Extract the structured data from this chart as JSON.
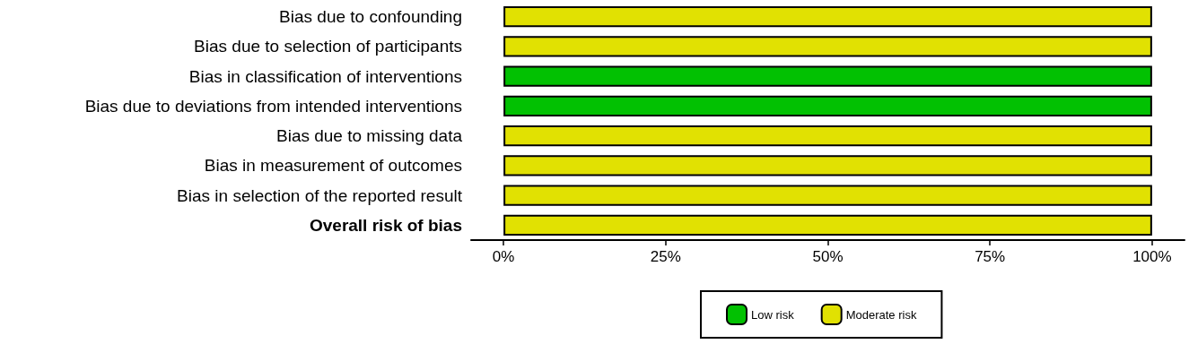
{
  "chart_data": {
    "type": "bar",
    "orientation": "horizontal",
    "stacked": true,
    "categories": [
      "Bias due to confounding",
      "Bias due to selection of participants",
      "Bias in classification of interventions",
      "Bias due to deviations from intended interventions",
      "Bias due to missing data",
      "Bias in measurement of outcomes",
      "Bias in selection of the reported result",
      "Overall risk of bias"
    ],
    "series": [
      {
        "name": "Low risk",
        "color": "#02c102",
        "values": [
          null,
          null,
          100,
          100,
          null,
          null,
          null,
          null
        ]
      },
      {
        "name": "Moderate risk",
        "color": "#e1e102",
        "values": [
          100,
          100,
          null,
          null,
          100,
          100,
          100,
          100
        ]
      }
    ],
    "xlim": [
      -5,
      105
    ],
    "xticks": [
      {
        "value": 0,
        "label": "0%"
      },
      {
        "value": 25,
        "label": "25%"
      },
      {
        "value": 50,
        "label": "50%"
      },
      {
        "value": 75,
        "label": "75%"
      },
      {
        "value": 100,
        "label": "100%"
      }
    ],
    "grid": false,
    "legend": "bottom"
  }
}
